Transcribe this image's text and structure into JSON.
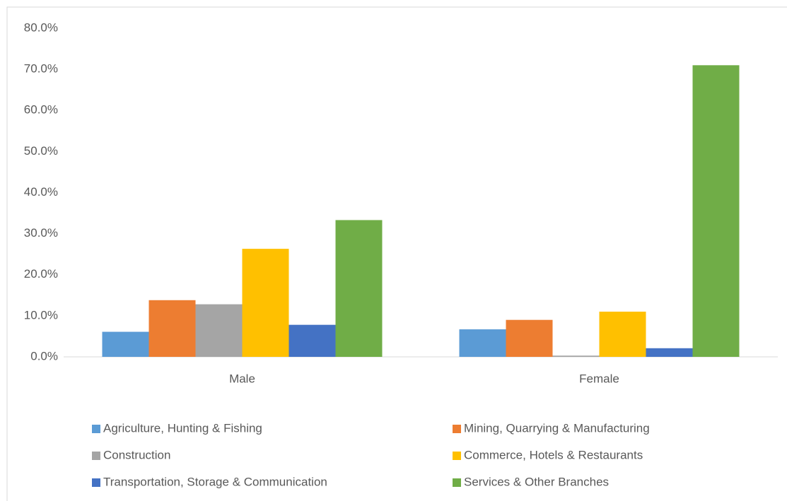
{
  "chart_data": {
    "type": "bar",
    "categories": [
      "Male",
      "Female"
    ],
    "series": [
      {
        "name": "Agriculture, Hunting & Fishing",
        "color": "#5b9bd5",
        "values": [
          6.1,
          6.7
        ]
      },
      {
        "name": "Mining, Quarrying & Manufacturing",
        "color": "#ed7d31",
        "values": [
          13.8,
          9.0
        ]
      },
      {
        "name": "Construction",
        "color": "#a5a5a5",
        "values": [
          12.8,
          0.3
        ]
      },
      {
        "name": "Commerce, Hotels & Restaurants",
        "color": "#ffc000",
        "values": [
          26.3,
          11.0
        ]
      },
      {
        "name": "Transportation, Storage & Communication",
        "color": "#4472c4",
        "values": [
          7.8,
          2.1
        ]
      },
      {
        "name": "Services & Other Branches",
        "color": "#70ad47",
        "values": [
          33.3,
          71.0
        ]
      }
    ],
    "ylim": [
      0,
      80
    ],
    "yticks": [
      {
        "value": 0,
        "label": "0.0%"
      },
      {
        "value": 10,
        "label": "10.0%"
      },
      {
        "value": 20,
        "label": "20.0%"
      },
      {
        "value": 30,
        "label": "30.0%"
      },
      {
        "value": 40,
        "label": "40.0%"
      },
      {
        "value": 50,
        "label": "50.0%"
      },
      {
        "value": 60,
        "label": "60.0%"
      },
      {
        "value": 70,
        "label": "70.0%"
      },
      {
        "value": 80,
        "label": "80.0%"
      }
    ],
    "grid": false,
    "legend": "bottom"
  }
}
